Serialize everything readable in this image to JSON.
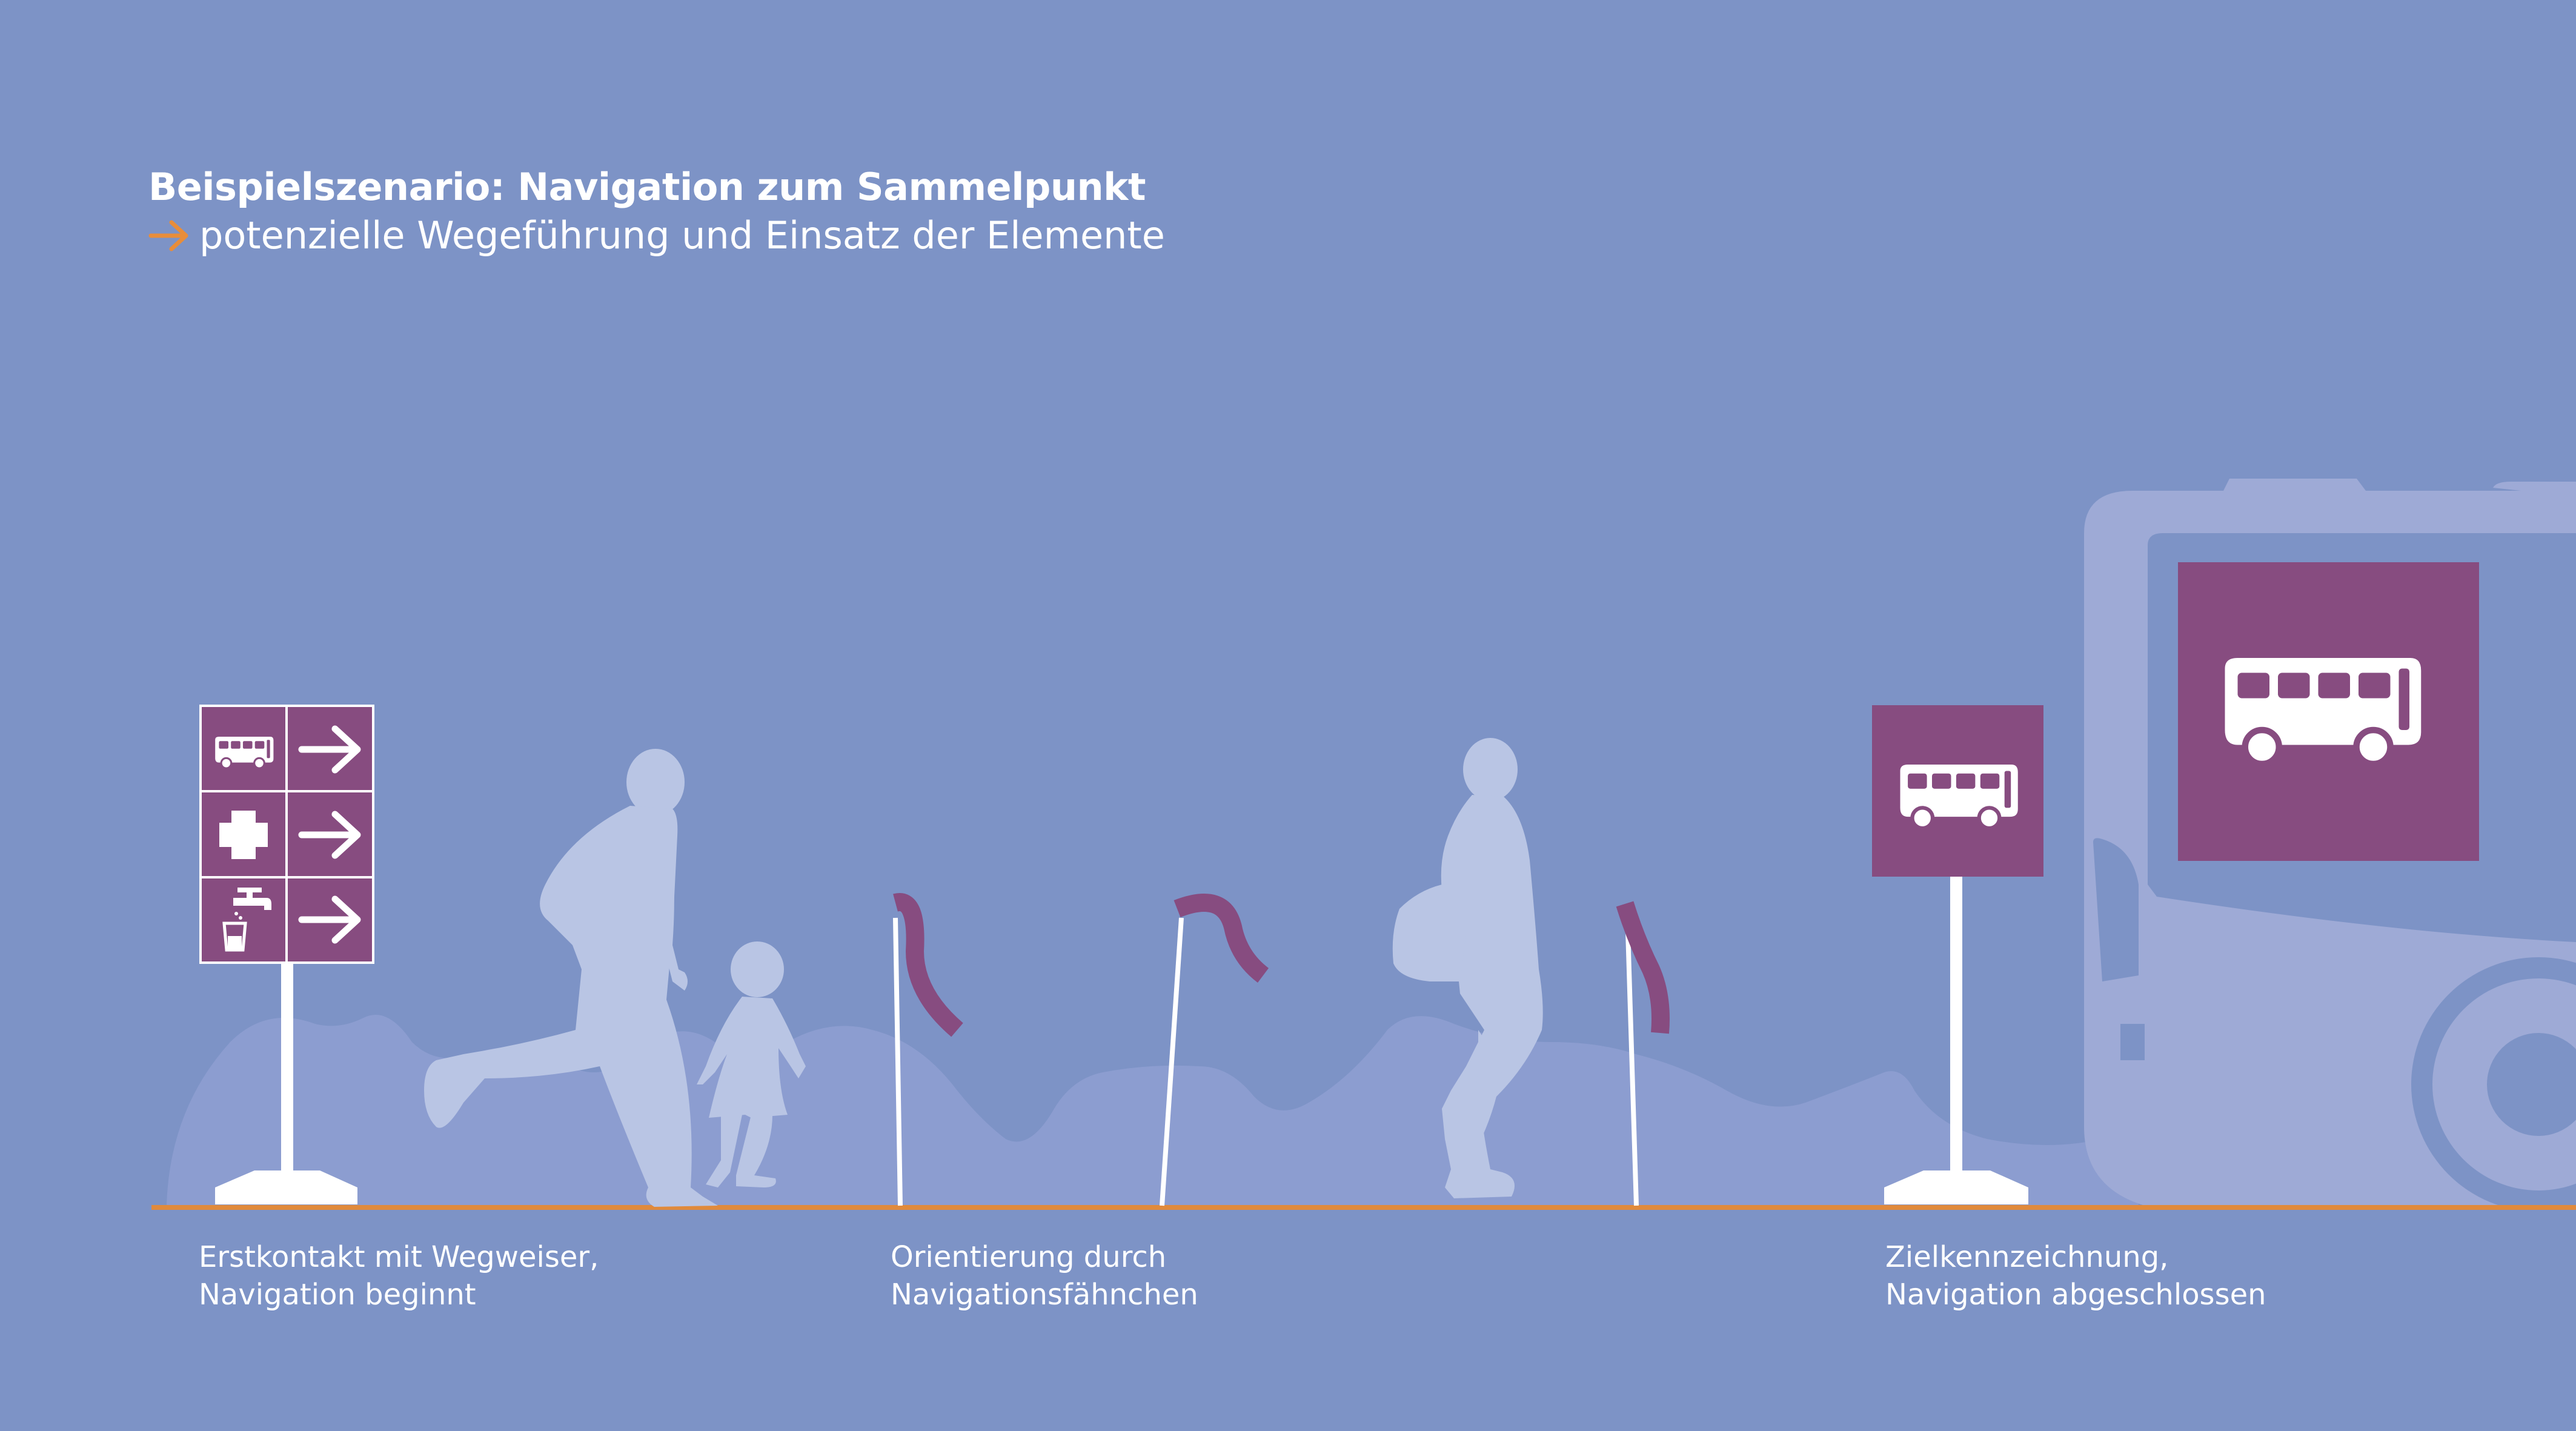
{
  "title": "Beispielszenario: Navigation zum Sammelpunkt",
  "subtitle": "potenzielle Wegeführung und Einsatz der Elemente",
  "captions": [
    {
      "line1": "Erstkontakt mit Wegweiser,",
      "line2": "Navigation beginnt"
    },
    {
      "line1": "Orientierung durch",
      "line2": "Navigationsfähnchen"
    },
    {
      "line1": "Zielkennzeichnung,",
      "line2": "Navigation abgeschlossen"
    }
  ],
  "signpost_rows": [
    {
      "icon": "bus-icon",
      "direction": "arrow-right-icon"
    },
    {
      "icon": "first-aid-cross-icon",
      "direction": "arrow-right-icon"
    },
    {
      "icon": "water-tap-icon",
      "direction": "arrow-right-icon"
    }
  ],
  "colors": {
    "background": "#7d93c6",
    "sign_purple": "#874c80",
    "silhouette": "#b9c5e4",
    "bus_body": "#9eaad6",
    "hills": "#8c9dd0",
    "ground_line": "#e08a3c",
    "accent_arrow": "#e88d3a"
  }
}
